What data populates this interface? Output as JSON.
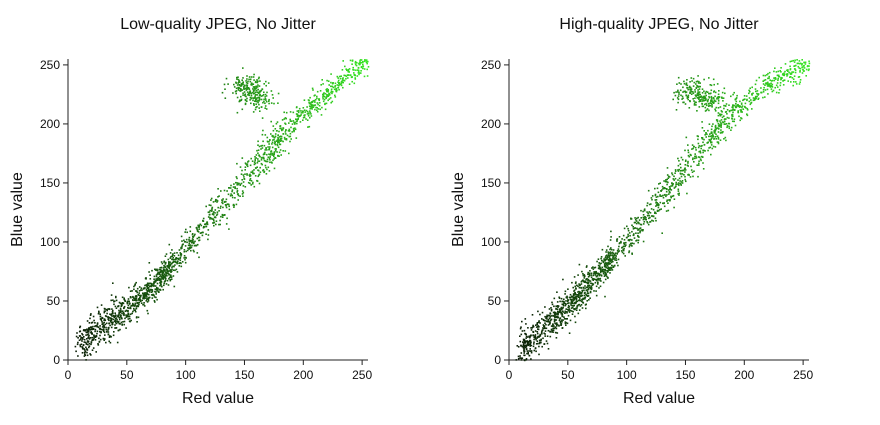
{
  "chart_data": [
    {
      "type": "scatter",
      "title": "Low-quality JPEG, No Jitter",
      "xlabel": "Red value",
      "ylabel": "Blue value",
      "xlim": [
        0,
        255
      ],
      "ylim": [
        0,
        255
      ],
      "xticks": [
        0,
        50,
        100,
        150,
        200,
        250
      ],
      "yticks": [
        0,
        50,
        100,
        150,
        200,
        250
      ],
      "grid": false,
      "point_color": "green, darker at low values to bright #33dd22 at high values",
      "series": [
        {
          "x": [
            5,
            10,
            15,
            20,
            25,
            30,
            35,
            40,
            45,
            50,
            55,
            60,
            65,
            70,
            75,
            80,
            85,
            90,
            95,
            100,
            105,
            110,
            115,
            120,
            125,
            130,
            135,
            140,
            145,
            150,
            155,
            160,
            165,
            170,
            175,
            180,
            185,
            190,
            195,
            200,
            205,
            210,
            215,
            220,
            225,
            230,
            235,
            240,
            245,
            250,
            255
          ],
          "y": [
            10,
            14,
            18,
            22,
            26,
            30,
            34,
            38,
            42,
            45,
            49,
            54,
            58,
            63,
            68,
            73,
            78,
            84,
            89,
            95,
            101,
            107,
            113,
            119,
            125,
            131,
            137,
            143,
            149,
            155,
            161,
            167,
            173,
            179,
            184,
            190,
            196,
            200,
            205,
            210,
            214,
            218,
            222,
            227,
            231,
            236,
            240,
            244,
            248,
            252,
            255
          ]
        }
      ],
      "clusters": [
        {
          "x": 150,
          "y": 232
        },
        {
          "x": 160,
          "y": 225
        }
      ]
    },
    {
      "type": "scatter",
      "title": "High-quality JPEG, No Jitter",
      "xlabel": "Red value",
      "ylabel": "Blue value",
      "xlim": [
        0,
        255
      ],
      "ylim": [
        0,
        255
      ],
      "xticks": [
        0,
        50,
        100,
        150,
        200,
        250
      ],
      "yticks": [
        0,
        50,
        100,
        150,
        200,
        250
      ],
      "grid": false,
      "point_color": "green, darker at low values to bright #33dd22 at high values",
      "series": [
        {
          "x": [
            5,
            10,
            15,
            20,
            25,
            30,
            35,
            40,
            45,
            50,
            55,
            60,
            65,
            70,
            75,
            80,
            85,
            90,
            95,
            100,
            105,
            110,
            115,
            120,
            125,
            130,
            135,
            140,
            145,
            150,
            155,
            160,
            165,
            170,
            175,
            180,
            185,
            190,
            195,
            200,
            205,
            210,
            215,
            220,
            225,
            230,
            235,
            240,
            245,
            250,
            255
          ],
          "y": [
            7,
            11,
            15,
            19,
            23,
            27,
            32,
            37,
            42,
            47,
            52,
            57,
            62,
            67,
            73,
            78,
            84,
            90,
            96,
            102,
            108,
            114,
            120,
            127,
            133,
            140,
            146,
            152,
            158,
            164,
            170,
            176,
            182,
            188,
            194,
            200,
            205,
            210,
            214,
            218,
            222,
            226,
            230,
            233,
            236,
            239,
            242,
            245,
            248,
            251,
            254
          ]
        }
      ],
      "clusters": [
        {
          "x": 155,
          "y": 228
        },
        {
          "x": 170,
          "y": 222
        }
      ]
    }
  ]
}
